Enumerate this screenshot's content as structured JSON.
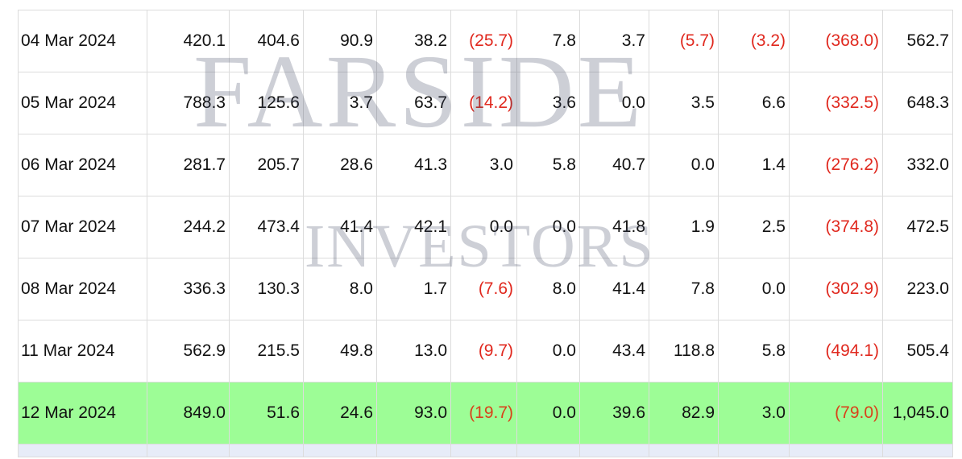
{
  "table": {
    "rows": [
      {
        "date": "04 Mar 2024",
        "cells": [
          {
            "text": "420.1",
            "negative": false
          },
          {
            "text": "404.6",
            "negative": false
          },
          {
            "text": "90.9",
            "negative": false
          },
          {
            "text": "38.2",
            "negative": false
          },
          {
            "text": "(25.7)",
            "negative": true
          },
          {
            "text": "7.8",
            "negative": false
          },
          {
            "text": "3.7",
            "negative": false
          },
          {
            "text": "(5.7)",
            "negative": true
          },
          {
            "text": "(3.2)",
            "negative": true
          },
          {
            "text": "(368.0)",
            "negative": true
          },
          {
            "text": "562.7",
            "negative": false
          }
        ]
      },
      {
        "date": "05 Mar 2024",
        "cells": [
          {
            "text": "788.3",
            "negative": false
          },
          {
            "text": "125.6",
            "negative": false
          },
          {
            "text": "3.7",
            "negative": false
          },
          {
            "text": "63.7",
            "negative": false
          },
          {
            "text": "(14.2)",
            "negative": true
          },
          {
            "text": "3.6",
            "negative": false
          },
          {
            "text": "0.0",
            "negative": false
          },
          {
            "text": "3.5",
            "negative": false
          },
          {
            "text": "6.6",
            "negative": false
          },
          {
            "text": "(332.5)",
            "negative": true
          },
          {
            "text": "648.3",
            "negative": false
          }
        ]
      },
      {
        "date": "06 Mar 2024",
        "cells": [
          {
            "text": "281.7",
            "negative": false
          },
          {
            "text": "205.7",
            "negative": false
          },
          {
            "text": "28.6",
            "negative": false
          },
          {
            "text": "41.3",
            "negative": false
          },
          {
            "text": "3.0",
            "negative": false
          },
          {
            "text": "5.8",
            "negative": false
          },
          {
            "text": "40.7",
            "negative": false
          },
          {
            "text": "0.0",
            "negative": false
          },
          {
            "text": "1.4",
            "negative": false
          },
          {
            "text": "(276.2)",
            "negative": true
          },
          {
            "text": "332.0",
            "negative": false
          }
        ]
      },
      {
        "date": "07 Mar 2024",
        "cells": [
          {
            "text": "244.2",
            "negative": false
          },
          {
            "text": "473.4",
            "negative": false
          },
          {
            "text": "41.4",
            "negative": false
          },
          {
            "text": "42.1",
            "negative": false
          },
          {
            "text": "0.0",
            "negative": false
          },
          {
            "text": "0.0",
            "negative": false
          },
          {
            "text": "41.8",
            "negative": false
          },
          {
            "text": "1.9",
            "negative": false
          },
          {
            "text": "2.5",
            "negative": false
          },
          {
            "text": "(374.8)",
            "negative": true
          },
          {
            "text": "472.5",
            "negative": false
          }
        ]
      },
      {
        "date": "08 Mar 2024",
        "cells": [
          {
            "text": "336.3",
            "negative": false
          },
          {
            "text": "130.3",
            "negative": false
          },
          {
            "text": "8.0",
            "negative": false
          },
          {
            "text": "1.7",
            "negative": false
          },
          {
            "text": "(7.6)",
            "negative": true
          },
          {
            "text": "8.0",
            "negative": false
          },
          {
            "text": "41.4",
            "negative": false
          },
          {
            "text": "7.8",
            "negative": false
          },
          {
            "text": "0.0",
            "negative": false
          },
          {
            "text": "(302.9)",
            "negative": true
          },
          {
            "text": "223.0",
            "negative": false
          }
        ]
      },
      {
        "date": "11 Mar 2024",
        "cells": [
          {
            "text": "562.9",
            "negative": false
          },
          {
            "text": "215.5",
            "negative": false
          },
          {
            "text": "49.8",
            "negative": false
          },
          {
            "text": "13.0",
            "negative": false
          },
          {
            "text": "(9.7)",
            "negative": true
          },
          {
            "text": "0.0",
            "negative": false
          },
          {
            "text": "43.4",
            "negative": false
          },
          {
            "text": "118.8",
            "negative": false
          },
          {
            "text": "5.8",
            "negative": false
          },
          {
            "text": "(494.1)",
            "negative": true
          },
          {
            "text": "505.4",
            "negative": false
          }
        ]
      },
      {
        "date": "12 Mar 2024",
        "highlighted": true,
        "cells": [
          {
            "text": "849.0",
            "negative": false
          },
          {
            "text": "51.6",
            "negative": false
          },
          {
            "text": "24.6",
            "negative": false
          },
          {
            "text": "93.0",
            "negative": false
          },
          {
            "text": "(19.7)",
            "negative": true
          },
          {
            "text": "0.0",
            "negative": false
          },
          {
            "text": "39.6",
            "negative": false
          },
          {
            "text": "82.9",
            "negative": false
          },
          {
            "text": "3.0",
            "negative": false
          },
          {
            "text": "(79.0)",
            "negative": true
          },
          {
            "text": "1,045.0",
            "negative": false
          }
        ]
      }
    ]
  },
  "watermark": {
    "line1": "Farside",
    "line2": "Investors"
  },
  "colors": {
    "negative_text": "#e0281e",
    "highlight_row": "#9dfd96",
    "grid_line": "#dcdcdc",
    "partial_row": "#e7ecf8"
  }
}
